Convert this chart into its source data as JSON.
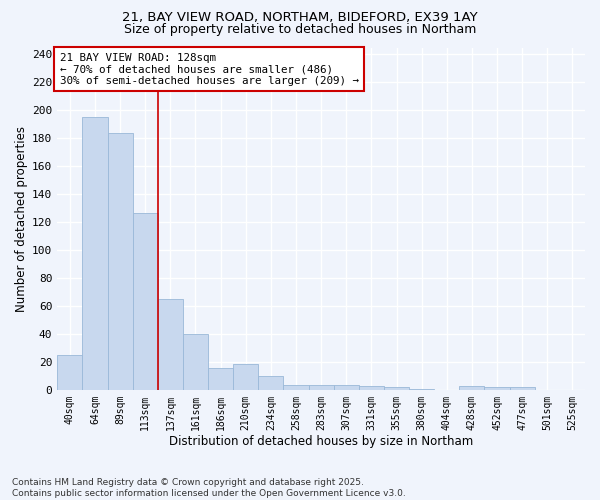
{
  "title1": "21, BAY VIEW ROAD, NORTHAM, BIDEFORD, EX39 1AY",
  "title2": "Size of property relative to detached houses in Northam",
  "xlabel": "Distribution of detached houses by size in Northam",
  "ylabel": "Number of detached properties",
  "categories": [
    "40sqm",
    "64sqm",
    "89sqm",
    "113sqm",
    "137sqm",
    "161sqm",
    "186sqm",
    "210sqm",
    "234sqm",
    "258sqm",
    "283sqm",
    "307sqm",
    "331sqm",
    "355sqm",
    "380sqm",
    "404sqm",
    "428sqm",
    "452sqm",
    "477sqm",
    "501sqm",
    "525sqm"
  ],
  "values": [
    25,
    195,
    184,
    127,
    65,
    40,
    16,
    19,
    10,
    4,
    4,
    4,
    3,
    2,
    1,
    0,
    3,
    2,
    2,
    0,
    0
  ],
  "bar_color": "#c8d8ee",
  "bar_edgecolor": "#9ab8d8",
  "redline_x": 3.5,
  "annotation_text": "21 BAY VIEW ROAD: 128sqm\n← 70% of detached houses are smaller (486)\n30% of semi-detached houses are larger (209) →",
  "annotation_box_color": "#ffffff",
  "annotation_box_edgecolor": "#cc0000",
  "redline_color": "#cc0000",
  "background_color": "#f0f4fc",
  "grid_color": "#ffffff",
  "footer_text": "Contains HM Land Registry data © Crown copyright and database right 2025.\nContains public sector information licensed under the Open Government Licence v3.0.",
  "ylim": [
    0,
    245
  ],
  "yticks": [
    0,
    20,
    40,
    60,
    80,
    100,
    120,
    140,
    160,
    180,
    200,
    220,
    240
  ]
}
